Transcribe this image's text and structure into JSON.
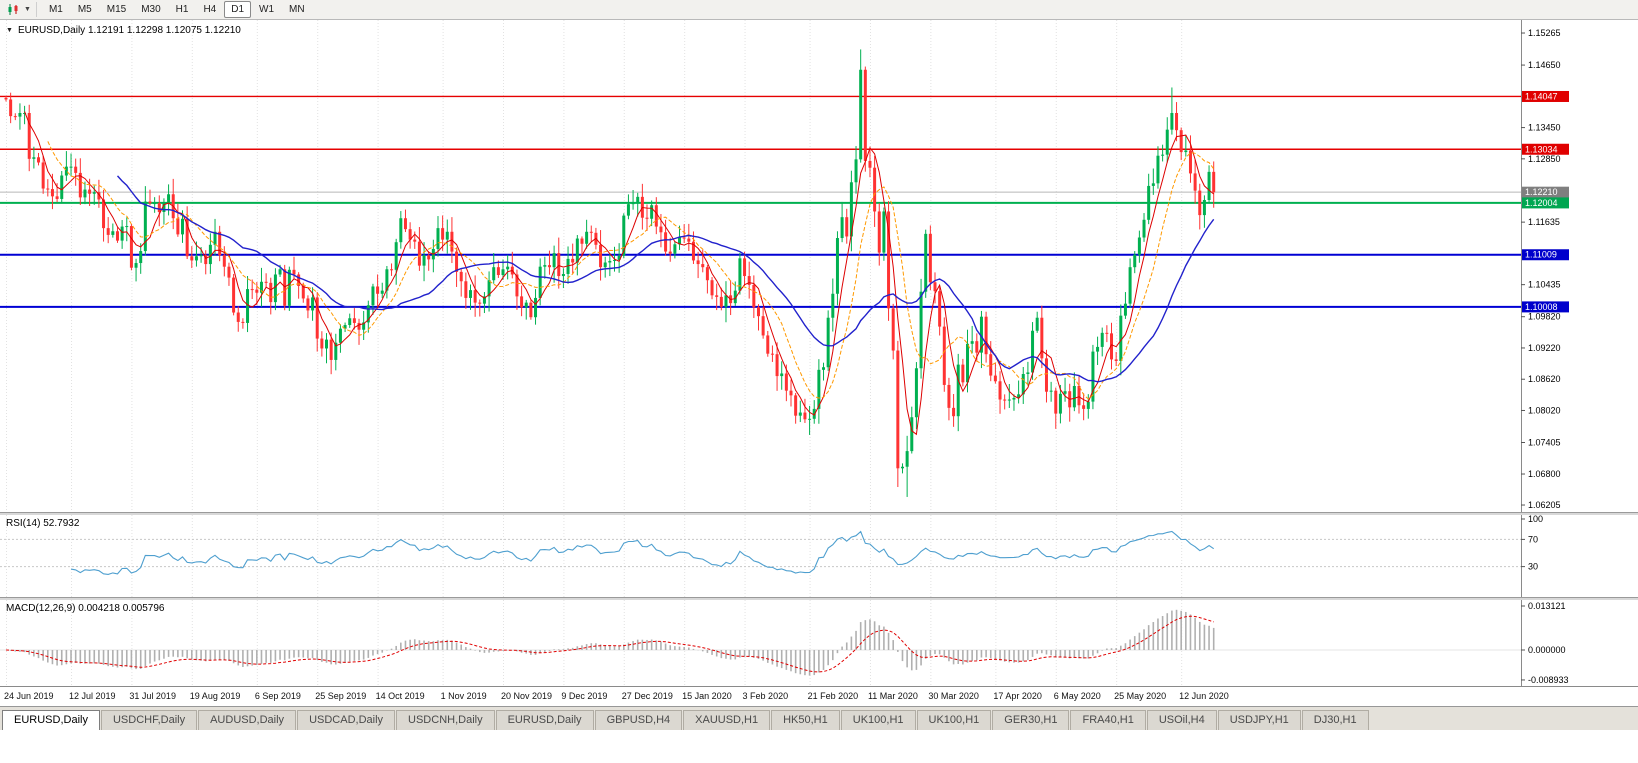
{
  "toolbar": {
    "timeframes": [
      "M1",
      "M5",
      "M15",
      "M30",
      "H1",
      "H4",
      "D1",
      "W1",
      "MN"
    ],
    "active_timeframe": "D1"
  },
  "chart_data": {
    "type": "candlestick",
    "symbol": "EURUSD",
    "timeframe": "Daily",
    "header": "EURUSD,Daily 1.12191 1.12298 1.12075 1.12210",
    "current_bar": {
      "open": "1.12191",
      "high": "1.12298",
      "low": "1.12075",
      "close": "1.12210"
    },
    "colors": {
      "up": "#00b050",
      "down": "#ff3232"
    },
    "open_first": 1.1402,
    "closes": [
      1.1399,
      1.1367,
      1.1366,
      1.1373,
      1.1373,
      1.1285,
      1.1288,
      1.1278,
      1.1228,
      1.1227,
      1.1213,
      1.1208,
      1.1253,
      1.127,
      1.127,
      1.1258,
      1.1211,
      1.1226,
      1.1218,
      1.1221,
      1.1207,
      1.1152,
      1.1139,
      1.1146,
      1.1128,
      1.1155,
      1.1156,
      1.1076,
      1.1085,
      1.1108,
      1.1203,
      1.12,
      1.12,
      1.1183,
      1.12,
      1.1217,
      1.1171,
      1.114,
      1.117,
      1.1098,
      1.109,
      1.1098,
      1.11,
      1.1083,
      1.112,
      1.1145,
      1.11,
      1.1078,
      1.1057,
      1.099,
      1.0972,
      1.097,
      1.1035,
      1.1034,
      1.1028,
      1.1049,
      1.1047,
      1.101,
      1.1063,
      1.1073,
      1.1003,
      1.1072,
      1.1063,
      1.1041,
      1.1017,
      1.0994,
      1.1019,
      1.094,
      1.0921,
      1.0938,
      1.0899,
      1.0932,
      1.0959,
      1.0966,
      1.0979,
      1.097,
      1.0957,
      1.0971,
      1.1004,
      1.104,
      1.1026,
      1.1032,
      1.1073,
      1.1072,
      1.1125,
      1.1171,
      1.115,
      1.113,
      1.1126,
      1.108,
      1.11,
      1.1092,
      1.1112,
      1.1152,
      1.113,
      1.1145,
      1.1107,
      1.1068,
      1.105,
      1.1018,
      1.1033,
      1.1009,
      1.1007,
      1.1021,
      1.1052,
      1.1077,
      1.1062,
      1.1073,
      1.1078,
      1.1063,
      1.1021,
      1.1,
      1.1009,
      1.0981,
      1.1018,
      1.1078,
      1.1081,
      1.1077,
      1.1104,
      1.106,
      1.1064,
      1.1093,
      1.1086,
      1.1132,
      1.1122,
      1.1145,
      1.1143,
      1.112,
      1.1077,
      1.1086,
      1.1089,
      1.1091,
      1.1099,
      1.1176,
      1.1198,
      1.12,
      1.1212,
      1.1172,
      1.117,
      1.1196,
      1.1155,
      1.1144,
      1.1107,
      1.1103,
      1.1121,
      1.1134,
      1.1132,
      1.1126,
      1.109,
      1.1083,
      1.1077,
      1.1052,
      1.1023,
      1.102,
      1.1001,
      1.1023,
      1.1008,
      1.1032,
      1.1094,
      1.106,
      1.1043,
      1.1,
      1.0983,
      1.0946,
      1.0911,
      1.091,
      1.0868,
      1.0873,
      1.084,
      1.0831,
      1.0792,
      1.0798,
      1.0785,
      1.0786,
      1.0805,
      1.088,
      1.0885,
      1.098,
      1.1026,
      1.1133,
      1.1173,
      1.1136,
      1.124,
      1.1284,
      1.1456,
      1.1281,
      1.1268,
      1.1184,
      1.1105,
      1.1184,
      1.0998,
      1.0917,
      1.0691,
      1.0694,
      1.0724,
      1.0789,
      1.0883,
      1.103,
      1.1141,
      1.1048,
      1.1031,
      1.0963,
      1.0851,
      1.0807,
      1.0791,
      1.089,
      1.0856,
      1.093,
      1.0935,
      1.0913,
      1.0982,
      1.091,
      1.0869,
      1.0858,
      1.0823,
      1.0821,
      1.0823,
      1.0826,
      1.0833,
      1.0872,
      1.0875,
      1.0955,
      1.098,
      1.0902,
      1.0838,
      1.084,
      1.0796,
      1.0834,
      1.0839,
      1.0808,
      1.0849,
      1.0812,
      1.0805,
      1.0819,
      1.0915,
      1.0924,
      1.0951,
      1.095,
      1.09,
      1.0897,
      1.0984,
      1.1007,
      1.1077,
      1.1101,
      1.1134,
      1.1168,
      1.1233,
      1.1238,
      1.1291,
      1.1293,
      1.1341,
      1.1373,
      1.134,
      1.1298,
      1.1301,
      1.1257,
      1.1224,
      1.1177,
      1.1206,
      1.126,
      1.1221
    ],
    "wick_overrides": {
      "1": {
        "h": 1.1412
      },
      "71": {
        "l": 1.0879
      },
      "172": {
        "l": 1.0778
      },
      "184": {
        "h": 1.1495
      },
      "192": {
        "l": 1.0655
      },
      "194": {
        "l": 1.0636
      },
      "251": {
        "h": 1.1422
      }
    },
    "date_labels": [
      {
        "i": 0,
        "t": "24 Jun 2019"
      },
      {
        "i": 14,
        "t": "12 Jul 2019"
      },
      {
        "i": 27,
        "t": "31 Jul 2019"
      },
      {
        "i": 40,
        "t": "19 Aug 2019"
      },
      {
        "i": 54,
        "t": "6 Sep 2019"
      },
      {
        "i": 67,
        "t": "25 Sep 2019"
      },
      {
        "i": 80,
        "t": "14 Oct 2019"
      },
      {
        "i": 94,
        "t": "1 Nov 2019"
      },
      {
        "i": 107,
        "t": "20 Nov 2019"
      },
      {
        "i": 120,
        "t": "9 Dec 2019"
      },
      {
        "i": 133,
        "t": "27 Dec 2019"
      },
      {
        "i": 146,
        "t": "15 Jan 2020"
      },
      {
        "i": 159,
        "t": "3 Feb 2020"
      },
      {
        "i": 173,
        "t": "21 Feb 2020"
      },
      {
        "i": 186,
        "t": "11 Mar 2020"
      },
      {
        "i": 199,
        "t": "30 Mar 2020"
      },
      {
        "i": 213,
        "t": "17 Apr 2020"
      },
      {
        "i": 226,
        "t": "6 May 2020"
      },
      {
        "i": 239,
        "t": "25 May 2020"
      },
      {
        "i": 253,
        "t": "12 Jun 2020"
      }
    ],
    "price_axis": {
      "regular": [
        "1.15265",
        "1.14650",
        "1.13450",
        "1.12850",
        "1.11635",
        "1.10435",
        "1.09820",
        "1.09220",
        "1.08620",
        "1.08020",
        "1.07405",
        "1.06800",
        "1.06205"
      ],
      "badges": [
        {
          "value": "1.14047",
          "color": "#e00000"
        },
        {
          "value": "1.13034",
          "color": "#e00000"
        },
        {
          "value": "1.12210",
          "color": "#7f7f7f"
        },
        {
          "value": "1.12004",
          "color": "#00a651"
        },
        {
          "value": "1.11009",
          "color": "#0000cc"
        },
        {
          "value": "1.10008",
          "color": "#0000cc"
        }
      ]
    },
    "hlines": [
      {
        "price": 1.14047,
        "color": "#e60000",
        "width": 1.4
      },
      {
        "price": 1.13034,
        "color": "#e60000",
        "width": 1.4
      },
      {
        "price": 1.1221,
        "color": "#b8b8b8",
        "width": 1
      },
      {
        "price": 1.12004,
        "color": "#00b050",
        "width": 2
      },
      {
        "price": 1.11009,
        "color": "#0000d4",
        "width": 2
      },
      {
        "price": 1.10008,
        "color": "#0000d4",
        "width": 2
      }
    ],
    "ma": [
      {
        "period": 5,
        "color": "#dd0000",
        "dash": "",
        "width": 1
      },
      {
        "period": 10,
        "color": "#ff9900",
        "dash": "4 2",
        "width": 1
      },
      {
        "period": 25,
        "color": "#2222cc",
        "dash": "",
        "width": 1.4
      }
    ],
    "indicators": {
      "rsi": {
        "label": "RSI(14) 52.7932",
        "period": 14,
        "value": 52.7932,
        "levels": [
          100,
          70,
          30
        ],
        "color": "#4e9fcf"
      },
      "macd": {
        "label": "MACD(12,26,9) 0.004218 0.005796",
        "fast": 12,
        "slow": 26,
        "signal": 9,
        "axis": [
          "0.013121",
          "0.000000",
          "-0.008933"
        ],
        "hist_color": "#b0b0b0",
        "signal_color": "#e00000"
      }
    }
  },
  "tabs": [
    {
      "label": "EURUSD,Daily",
      "active": true
    },
    {
      "label": "USDCHF,Daily",
      "active": false
    },
    {
      "label": "AUDUSD,Daily",
      "active": false
    },
    {
      "label": "USDCAD,Daily",
      "active": false
    },
    {
      "label": "USDCNH,Daily",
      "active": false
    },
    {
      "label": "EURUSD,Daily",
      "active": false
    },
    {
      "label": "GBPUSD,H4",
      "active": false
    },
    {
      "label": "XAUUSD,H1",
      "active": false
    },
    {
      "label": "HK50,H1",
      "active": false
    },
    {
      "label": "UK100,H1",
      "active": false
    },
    {
      "label": "UK100,H1",
      "active": false
    },
    {
      "label": "GER30,H1",
      "active": false
    },
    {
      "label": "FRA40,H1",
      "active": false
    },
    {
      "label": "USOil,H4",
      "active": false
    },
    {
      "label": "USDJPY,H1",
      "active": false
    },
    {
      "label": "DJ30,H1",
      "active": false
    }
  ]
}
